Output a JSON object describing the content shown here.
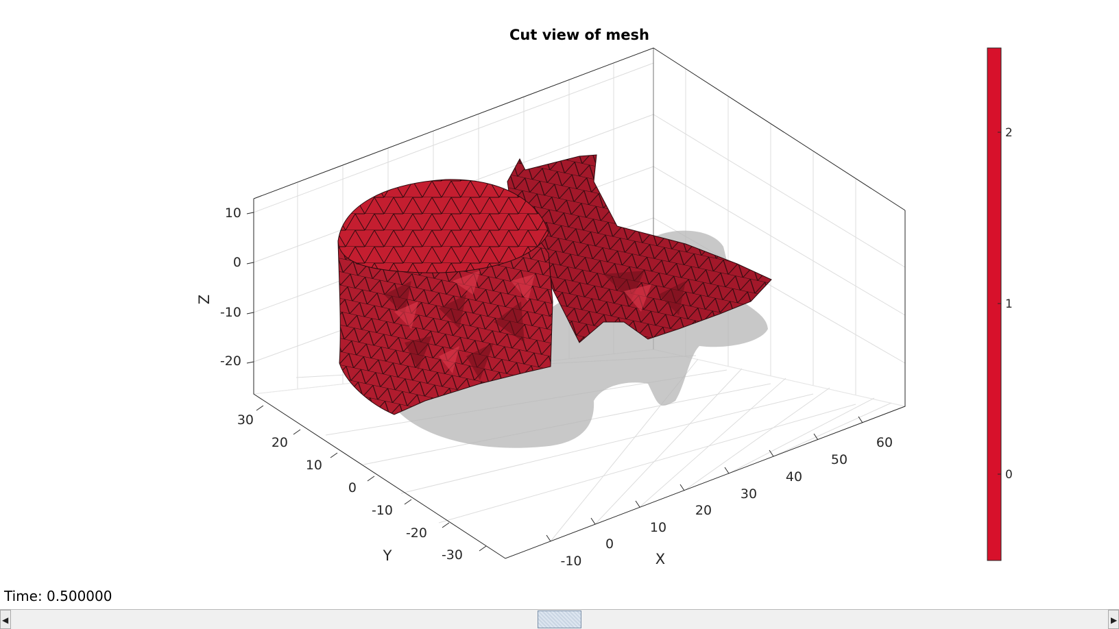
{
  "figure": {
    "title": "Cut view of mesh",
    "axes": {
      "x_label": "X",
      "y_label": "Y",
      "z_label": "Z",
      "x_ticks": [
        "-10",
        "0",
        "10",
        "20",
        "30",
        "40",
        "50",
        "60"
      ],
      "y_ticks": [
        "30",
        "20",
        "10",
        "0",
        "-10",
        "-20",
        "-30"
      ],
      "z_ticks": [
        "10",
        "0",
        "-10",
        "-20"
      ]
    },
    "colorbar": {
      "ticks": [
        "2",
        "1",
        "0"
      ],
      "color": "#d7112b"
    },
    "mesh": {
      "face_color": "#c41e30",
      "shadow_color": "#b5b5b5"
    }
  },
  "controls": {
    "time_label": "Time: 0.500000",
    "time_fraction": 0.5
  }
}
